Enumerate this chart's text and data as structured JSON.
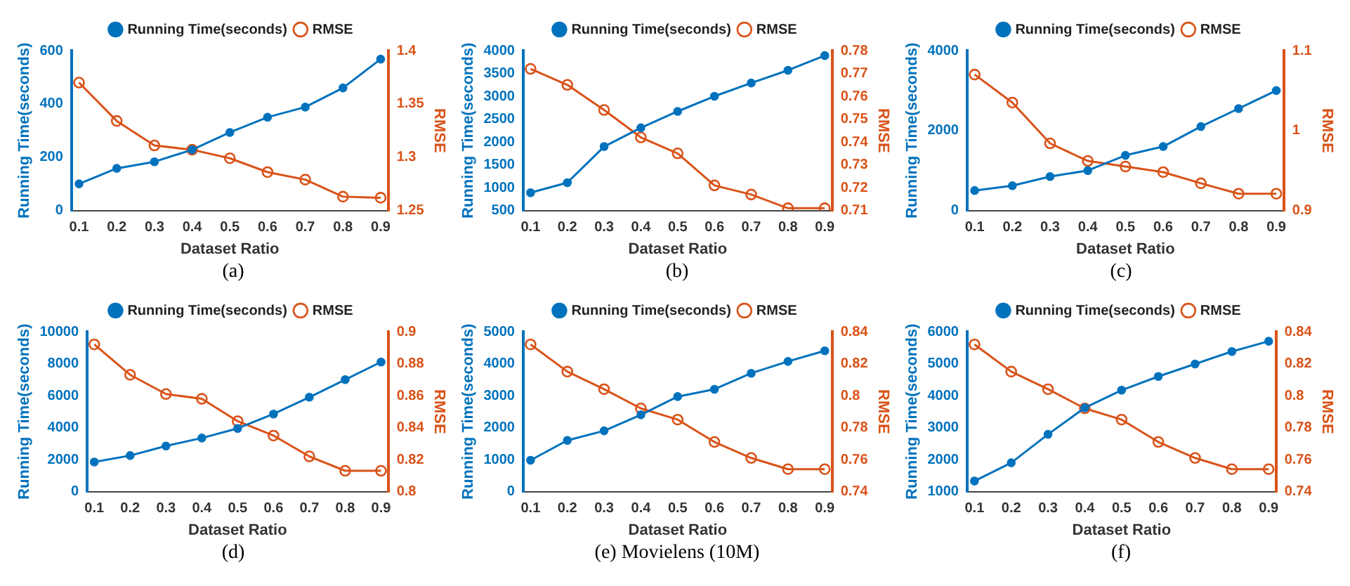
{
  "chart_data": [
    {
      "type": "line",
      "xlabel": "Dataset Ratio",
      "ylabel": "Running Time(seconds)",
      "y2label": "RMSE",
      "x": [
        0.1,
        0.2,
        0.3,
        0.4,
        0.5,
        0.6,
        0.7,
        0.8,
        0.9
      ],
      "xlim": [
        0.08,
        0.92
      ],
      "xticks": [
        0.1,
        0.2,
        0.3,
        0.4,
        0.5,
        0.6,
        0.7,
        0.8,
        0.9
      ],
      "ylim": [
        0,
        600
      ],
      "yticks": [
        0,
        200,
        400,
        600
      ],
      "y2lim": [
        1.25,
        1.4
      ],
      "y2ticks": [
        1.25,
        1.3,
        1.35,
        1.4
      ],
      "grid": false,
      "legend": "top",
      "marker": "circle",
      "annotations": [
        "(a)"
      ],
      "series": [
        {
          "name": "Running Time(seconds)",
          "color": "#0072bd",
          "values": [
            100,
            158,
            183,
            228,
            293,
            350,
            388,
            460,
            568
          ]
        },
        {
          "name": "RMSE",
          "color": "#d95319",
          "axis": "y2",
          "values": [
            1.37,
            1.334,
            1.311,
            1.307,
            1.299,
            1.286,
            1.279,
            1.263,
            1.262
          ]
        }
      ]
    },
    {
      "type": "line",
      "xlabel": "Dataset Ratio",
      "ylabel": "Running Time(seconds)",
      "y2label": "RMSE",
      "x": [
        0.1,
        0.2,
        0.3,
        0.4,
        0.5,
        0.6,
        0.7,
        0.8,
        0.9
      ],
      "xlim": [
        0.08,
        0.92
      ],
      "xticks": [
        0.1,
        0.2,
        0.3,
        0.4,
        0.5,
        0.6,
        0.7,
        0.8,
        0.9
      ],
      "ylim": [
        500,
        4000
      ],
      "yticks": [
        500,
        1000,
        1500,
        2000,
        2500,
        3000,
        3500,
        4000
      ],
      "y2lim": [
        0.71,
        0.78
      ],
      "y2ticks": [
        0.71,
        0.72,
        0.73,
        0.74,
        0.75,
        0.76,
        0.77,
        0.78
      ],
      "grid": false,
      "legend": "top",
      "marker": "circle",
      "annotations": [
        "(b)"
      ],
      "series": [
        {
          "name": "Running Time(seconds)",
          "color": "#0072bd",
          "values": [
            890,
            1110,
            1900,
            2310,
            2670,
            3000,
            3290,
            3570,
            3890
          ]
        },
        {
          "name": "RMSE",
          "color": "#d95319",
          "axis": "y2",
          "values": [
            0.772,
            0.765,
            0.754,
            0.742,
            0.735,
            0.721,
            0.717,
            0.711,
            0.711
          ]
        }
      ]
    },
    {
      "type": "line",
      "xlabel": "Dataset Ratio",
      "ylabel": "Running Time(seconds)",
      "y2label": "RMSE",
      "x": [
        0.1,
        0.2,
        0.3,
        0.4,
        0.5,
        0.6,
        0.7,
        0.8,
        0.9
      ],
      "xlim": [
        0.08,
        0.92
      ],
      "xticks": [
        0.1,
        0.2,
        0.3,
        0.4,
        0.5,
        0.6,
        0.7,
        0.8,
        0.9
      ],
      "ylim": [
        0,
        4000
      ],
      "yticks": [
        0,
        2000,
        4000
      ],
      "y2lim": [
        0.9,
        1.1
      ],
      "y2ticks": [
        0.9,
        1,
        1.1
      ],
      "grid": false,
      "legend": "top",
      "marker": "circle",
      "annotations": [
        "(c)"
      ],
      "series": [
        {
          "name": "Running Time(seconds)",
          "color": "#0072bd",
          "values": [
            500,
            620,
            850,
            1000,
            1380,
            1600,
            2100,
            2550,
            3000
          ]
        },
        {
          "name": "RMSE",
          "color": "#d95319",
          "axis": "y2",
          "values": [
            1.07,
            1.035,
            0.984,
            0.962,
            0.955,
            0.948,
            0.934,
            0.921,
            0.921
          ]
        }
      ]
    },
    {
      "type": "line",
      "xlabel": "Dataset Ratio",
      "ylabel": "Running Time(seconds)",
      "y2label": "RMSE",
      "x": [
        0.1,
        0.2,
        0.3,
        0.4,
        0.5,
        0.6,
        0.7,
        0.8,
        0.9
      ],
      "xlim": [
        0.08,
        0.92
      ],
      "xticks": [
        0.1,
        0.2,
        0.3,
        0.4,
        0.5,
        0.6,
        0.7,
        0.8,
        0.9
      ],
      "ylim": [
        0,
        10000
      ],
      "yticks": [
        0,
        2000,
        4000,
        6000,
        8000,
        10000
      ],
      "y2lim": [
        0.8,
        0.9
      ],
      "y2ticks": [
        0.8,
        0.82,
        0.84,
        0.86,
        0.88,
        0.9
      ],
      "grid": false,
      "legend": "top",
      "marker": "circle",
      "annotations": [
        "(d)"
      ],
      "series": [
        {
          "name": "Running Time(seconds)",
          "color": "#0072bd",
          "values": [
            1850,
            2250,
            2850,
            3350,
            3950,
            4850,
            5900,
            7000,
            8100
          ]
        },
        {
          "name": "RMSE",
          "color": "#d95319",
          "axis": "y2",
          "values": [
            0.892,
            0.873,
            0.861,
            0.858,
            0.844,
            0.835,
            0.822,
            0.813,
            0.813
          ]
        }
      ]
    },
    {
      "type": "line",
      "xlabel": "Dataset Ratio",
      "ylabel": "Running Time(seconds)",
      "y2label": "RMSE",
      "x": [
        0.1,
        0.2,
        0.3,
        0.4,
        0.5,
        0.6,
        0.7,
        0.8,
        0.9
      ],
      "xlim": [
        0.08,
        0.92
      ],
      "xticks": [
        0.1,
        0.2,
        0.3,
        0.4,
        0.5,
        0.6,
        0.7,
        0.8,
        0.9
      ],
      "ylim": [
        0,
        5000
      ],
      "yticks": [
        0,
        1000,
        2000,
        3000,
        4000,
        5000
      ],
      "y2lim": [
        0.74,
        0.84
      ],
      "y2ticks": [
        0.74,
        0.76,
        0.78,
        0.8,
        0.82,
        0.84
      ],
      "grid": false,
      "legend": "top",
      "marker": "circle",
      "annotations": [
        "(e) Movielens (10M)"
      ],
      "series": [
        {
          "name": "Running Time(seconds)",
          "color": "#0072bd",
          "values": [
            980,
            1600,
            1900,
            2400,
            2970,
            3200,
            3700,
            4070,
            4400
          ]
        },
        {
          "name": "RMSE",
          "color": "#d95319",
          "axis": "y2",
          "values": [
            0.832,
            0.815,
            0.804,
            0.792,
            0.785,
            0.771,
            0.761,
            0.754,
            0.754
          ]
        }
      ]
    },
    {
      "type": "line",
      "xlabel": "Dataset Ratio",
      "ylabel": "Running Time(seconds)",
      "y2label": "RMSE",
      "x": [
        0.1,
        0.2,
        0.3,
        0.4,
        0.5,
        0.6,
        0.7,
        0.8,
        0.9
      ],
      "xlim": [
        0.08,
        0.92
      ],
      "xticks": [
        0.1,
        0.2,
        0.3,
        0.4,
        0.5,
        0.6,
        0.7,
        0.8,
        0.9
      ],
      "ylim": [
        1000,
        6000
      ],
      "yticks": [
        1000,
        2000,
        3000,
        4000,
        5000,
        6000
      ],
      "y2lim": [
        0.74,
        0.84
      ],
      "y2ticks": [
        0.74,
        0.76,
        0.78,
        0.8,
        0.82,
        0.84
      ],
      "grid": false,
      "legend": "top",
      "marker": "circle",
      "annotations": [
        "(f)"
      ],
      "series": [
        {
          "name": "Running Time(seconds)",
          "color": "#0072bd",
          "values": [
            1330,
            1900,
            2790,
            3620,
            4170,
            4600,
            4990,
            5380,
            5700
          ]
        },
        {
          "name": "RMSE",
          "color": "#d95319",
          "axis": "y2",
          "values": [
            0.832,
            0.815,
            0.804,
            0.792,
            0.785,
            0.771,
            0.761,
            0.754,
            0.754
          ]
        }
      ]
    }
  ]
}
